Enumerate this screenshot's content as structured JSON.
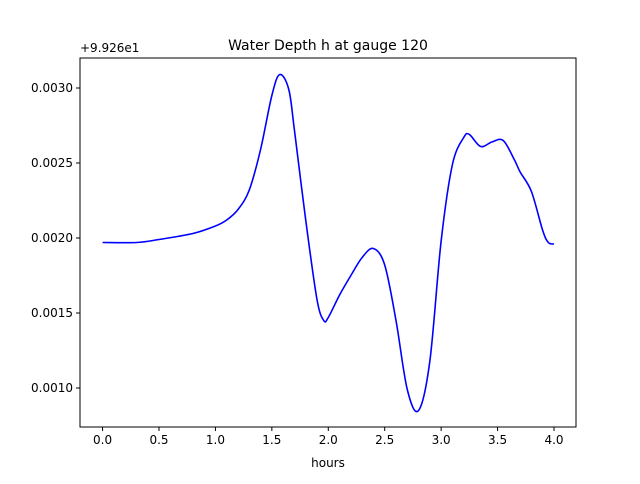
{
  "chart_data": {
    "type": "line",
    "title": "Water Depth h at gauge 120",
    "xlabel": "hours",
    "ylabel": "",
    "y_offset_label": "+9.926e1",
    "xlim": [
      -0.2,
      4.195
    ],
    "ylim": [
      0.00074,
      0.0032
    ],
    "grid": false,
    "x_ticks": [
      0.0,
      0.5,
      1.0,
      1.5,
      2.0,
      2.5,
      3.0,
      3.5,
      4.0
    ],
    "x_tick_labels": [
      "0.0",
      "0.5",
      "1.0",
      "1.5",
      "2.0",
      "2.5",
      "3.0",
      "3.5",
      "4.0"
    ],
    "y_ticks": [
      0.001,
      0.0015,
      0.002,
      0.0025,
      0.003
    ],
    "y_tick_labels": [
      "0.0010",
      "0.0015",
      "0.0020",
      "0.0025",
      "0.0030"
    ],
    "series": [
      {
        "name": "h",
        "color": "#0000ff",
        "x": [
          0.0,
          0.3,
          0.5,
          0.8,
          1.0,
          1.1,
          1.2,
          1.3,
          1.4,
          1.5,
          1.57,
          1.65,
          1.7,
          1.8,
          1.9,
          1.96,
          2.0,
          2.1,
          2.2,
          2.3,
          2.4,
          2.5,
          2.6,
          2.7,
          2.8,
          2.9,
          3.0,
          3.1,
          3.2,
          3.25,
          3.35,
          3.45,
          3.55,
          3.65,
          3.7,
          3.8,
          3.9,
          3.95,
          4.0
        ],
        "y": [
          0.00197,
          0.00197,
          0.00199,
          0.00203,
          0.00208,
          0.00212,
          0.00219,
          0.00232,
          0.00259,
          0.00295,
          0.00309,
          0.00299,
          0.00272,
          0.00212,
          0.00159,
          0.00145,
          0.00147,
          0.00162,
          0.00175,
          0.00187,
          0.00193,
          0.00182,
          0.00145,
          0.00099,
          0.00085,
          0.00118,
          0.00198,
          0.00249,
          0.00267,
          0.00269,
          0.00261,
          0.00264,
          0.00265,
          0.00252,
          0.00244,
          0.00231,
          0.00205,
          0.00197,
          0.00196
        ]
      }
    ]
  }
}
